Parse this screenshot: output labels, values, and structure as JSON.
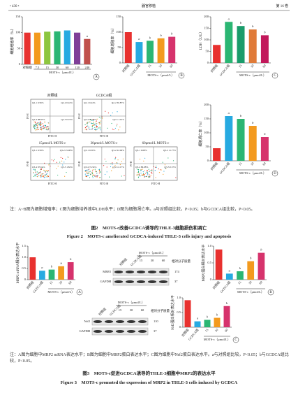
{
  "header": {
    "page": "• 430 •",
    "journal": "器官移植",
    "volume": "第 16 卷"
  },
  "figure2": {
    "panels": [
      {
        "type": "bar",
        "letter": "A",
        "ylabel": "细胞增殖率（%）",
        "ylim": [
          0,
          150
        ],
        "yticks": [
          0,
          50,
          100,
          150
        ],
        "categories": [
          "对照组",
          "7.5",
          "15",
          "30",
          "60",
          "120",
          "240"
        ],
        "group": "MOTS-c（μmol/L）",
        "values": [
          100,
          100,
          103,
          104,
          107,
          100,
          80
        ],
        "sig": [
          null,
          null,
          null,
          null,
          null,
          null,
          "a"
        ],
        "colors": [
          "#e8312f",
          "#f39a1e",
          "#8dc63f",
          "#2bb673",
          "#27aae1",
          "#7f3f98",
          "#c0504d"
        ]
      },
      {
        "type": "bar",
        "letter": "B",
        "ylabel": "细胞增殖率（%）",
        "ylim": [
          0,
          150
        ],
        "yticks": [
          0,
          50,
          100,
          150
        ],
        "categories": [
          "对照组",
          "GCDCA组",
          "15",
          "30",
          "60"
        ],
        "group": "MOTS-c（μmol/L）",
        "values": [
          100,
          68,
          72,
          80,
          85
        ],
        "sig": [
          null,
          "a",
          "b",
          "b",
          "b"
        ],
        "colors": [
          "#e8312f",
          "#27aae1",
          "#2bb673",
          "#f39a1e",
          "#d6336c"
        ]
      },
      {
        "type": "bar",
        "letter": "C",
        "ylabel": "LDH（U/L）",
        "ylim": [
          0,
          200
        ],
        "yticks": [
          0,
          50,
          100,
          150,
          200
        ],
        "categories": [
          "对照组",
          "GCDCA组",
          "15",
          "30",
          "60"
        ],
        "group": "MOTS-c（μmol/L）",
        "values": [
          78,
          178,
          160,
          145,
          120
        ],
        "sig": [
          null,
          "a",
          "b",
          "b",
          "b"
        ],
        "colors": [
          "#e8312f",
          "#2bb673",
          "#1a9c6b",
          "#e07b39",
          "#c2185b"
        ]
      },
      {
        "type": "bar",
        "letter": "D",
        "ylabel": "细胞凋亡率（%）",
        "ylim": [
          0,
          200
        ],
        "yticks": [
          0,
          50,
          100,
          150,
          200
        ],
        "categories": [
          "对照组",
          "GCDCA组",
          "15",
          "30",
          "60"
        ],
        "group": "MOTS-c（μmol/L）",
        "values": [
          45,
          160,
          150,
          125,
          85
        ],
        "sig": [
          null,
          "a",
          "b",
          "b",
          "b"
        ],
        "colors": [
          "#e8312f",
          "#27aae1",
          "#2bb673",
          "#f39a1e",
          "#d6336c"
        ]
      }
    ],
    "flow": {
      "xlabel": "FITC-H",
      "ylabel": "PI-H",
      "plots": [
        {
          "label": "对照组",
          "quads": [
            "Q2-1 0.56%",
            "Q2-2 0.42%",
            "Q2-4 98.83%",
            "Q2-3 0.19%"
          ]
        },
        {
          "label": "GCDCA组",
          "quads": [
            "Q2-1 0.44%",
            "Q2-2 30.87%",
            "Q2-4 58.55%",
            "Q2-3 1.01%"
          ]
        },
        {
          "label": "15μmol/L MOTS-c",
          "quads": [
            "Q3-1 0.59%",
            "Q3-2 25.98%",
            "Q3-4 67.61%",
            "Q3-3 1.82%"
          ]
        },
        {
          "label": "30μmol/L MOTS-c",
          "quads": [
            "Q3-1 0.50%",
            "Q3-2 22.99%",
            "Q3-4 74.34%",
            "Q3-3 2.17%"
          ]
        },
        {
          "label": "60μmol/L MOTS-c",
          "quads": [
            "Q3-1 0.68%",
            "Q3-2 11.77%",
            "Q3-4 86.98%",
            "Q3-3 0.57%"
          ]
        }
      ]
    },
    "note": "注：A~B图为细胞增殖率；C图为细胞培养液中LDH水平；D图为细胞凋亡率。a与对照组比较，P<0.05；b与GCDCA组比较，P<0.05。",
    "title_cn": "图2　MOTS-c改善GCDCA诱导的THLE-3细胞损伤和凋亡",
    "title_en": "Figure 2　MOTS-c ameliorated GCDCA-induced THLE-3 cells injury and apoptosis"
  },
  "figure3": {
    "panels": [
      {
        "type": "bar",
        "letter": "A",
        "ylabel": "MRP2 mRNA相对表达水平",
        "ylim": [
          0,
          1.5
        ],
        "yticks": [
          0,
          0.5,
          {
            "value": 1,
            "label": "1.0"
          },
          1.5
        ],
        "categories": [
          "对照组",
          "GCDCA组",
          "15",
          "30",
          "60"
        ],
        "group": "MOTS-c（μmol/L）",
        "values": [
          1,
          0.4,
          0.45,
          0.6,
          0.78
        ],
        "sig": [
          null,
          "a",
          "b",
          "b",
          "b"
        ],
        "colors": [
          "#e8312f",
          "#27aae1",
          "#2bb673",
          "#f39a1e",
          "#d6336c"
        ]
      },
      {
        "type": "bar",
        "letter": "B",
        "ylabel": "MRP2蛋白相对表达水平",
        "ylim": [
          0,
          1
        ],
        "yticks": [
          0,
          0.5,
          {
            "value": 1,
            "label": "1.0"
          }
        ],
        "categories": [
          "对照组",
          "GCDCA组",
          "15",
          "30",
          "60"
        ],
        "group": "MOTS-c（μmol/L）",
        "values": [
          0.9,
          0.18,
          0.25,
          0.55,
          0.8
        ],
        "sig": [
          null,
          "a",
          "b",
          "b",
          "b"
        ],
        "colors": [
          "#e8312f",
          "#27aae1",
          "#2bb673",
          "#f39a1e",
          "#d6336c"
        ]
      },
      {
        "type": "bar",
        "letter": "C",
        "ylabel": "Nrf2蛋白相对表达水平",
        "ylim": [
          0,
          1
        ],
        "yticks": [
          0,
          0.5,
          {
            "value": 1,
            "label": "1.0"
          }
        ],
        "categories": [
          "对照组",
          "GCDCA组",
          "15",
          "30",
          "60"
        ],
        "group": "MOTS-c（μmol/L）",
        "values": [
          0.92,
          0.2,
          0.25,
          0.32,
          0.72
        ],
        "sig": [
          null,
          "a",
          "b",
          "b",
          "b"
        ],
        "colors": [
          "#e8312f",
          "#27aae1",
          "#2bb673",
          "#f39a1e",
          "#d6336c"
        ]
      }
    ],
    "blots": [
      {
        "lanes": [
          "对照组",
          "GCDCA组"
        ],
        "group": "MOTS-c（μmol/L）",
        "doses": [
          "15",
          "30",
          "60"
        ],
        "mw_header": "相对分子质量",
        "rows": [
          {
            "name": "MRP2",
            "mw": 174
          },
          {
            "name": "GAPDH",
            "mw": 37
          }
        ]
      },
      {
        "lanes": [
          "对照组",
          "GCDCA组"
        ],
        "group": "MOTS-c（μmol/L）",
        "doses": [
          "15",
          "30",
          "60"
        ],
        "mw_header": "相对分子质量",
        "rows": [
          {
            "name": "Nrf2",
            "mw": 110
          },
          {
            "name": "GAPDH",
            "mw": 37
          }
        ]
      }
    ],
    "note": "注：A图为细胞中MRP2 mRNA表达水平；B图为细胞中MRP2蛋白表达水平；C图为细胞中Nrf2蛋白表达水平。a与对照组比较，P<0.05；b与GCDCA组比较，P<0.05。",
    "title_cn": "图3　MOTS-c促进GCDCA诱导的THLE-3细胞中MRP2的表达水平",
    "title_en": "Figure 3　MOTS-c promoted the expression of MRP2 in THLE-3 cells induced by GCDCA"
  }
}
